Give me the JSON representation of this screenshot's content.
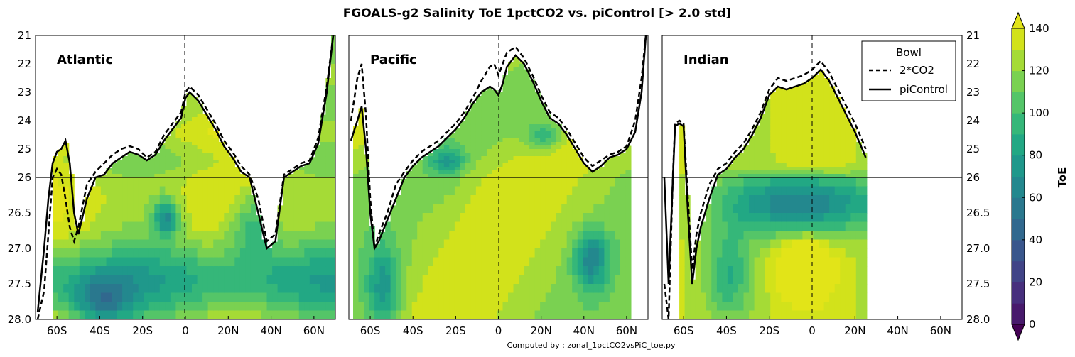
{
  "chart_data": {
    "type": "heatmap",
    "title": "FGOALS-g2 Salinity ToE 1pctCO2 vs. piControl [> 2.0 std]",
    "footer": "Computed by : zonal_1pctCO2vsPiC_toe.py",
    "x_ticks": [
      {
        "value": -60,
        "label": "60S"
      },
      {
        "value": -40,
        "label": "40S"
      },
      {
        "value": -20,
        "label": "20S"
      },
      {
        "value": 0,
        "label": "0"
      },
      {
        "value": 20,
        "label": "20N"
      },
      {
        "value": 40,
        "label": "40N"
      },
      {
        "value": 60,
        "label": "60N"
      }
    ],
    "xlim": [
      -70,
      70
    ],
    "y_ticks_upper": [
      "21",
      "22",
      "23",
      "24",
      "25",
      "26"
    ],
    "y_ticks_lower": [
      "26",
      "26.5",
      "27.0",
      "27.5",
      "28.0"
    ],
    "y_ticks_right_upper": [
      "21",
      "22",
      "23",
      "24",
      "25",
      "26"
    ],
    "y_ticks_right_lower": [
      "26",
      "26.5",
      "27.0",
      "27.5",
      "28.0"
    ],
    "ylim_upper": [
      21,
      26
    ],
    "ylim_lower": [
      26,
      28
    ],
    "y_axis_note": "density axis (inverted), two stacked domains split at 26",
    "colorbar": {
      "label": "ToE",
      "ticks": [
        "0",
        "20",
        "40",
        "60",
        "80",
        "100",
        "120",
        "140"
      ],
      "levels": [
        0,
        10,
        20,
        30,
        40,
        50,
        60,
        70,
        80,
        90,
        100,
        110,
        120,
        130,
        140
      ],
      "colors": [
        "#440154",
        "#481a6c",
        "#472f7d",
        "#414487",
        "#39568c",
        "#31688e",
        "#2a788e",
        "#23888e",
        "#1f988b",
        "#22a884",
        "#35b779",
        "#54c568",
        "#7ad151",
        "#a5db36",
        "#d2e21b",
        "#e2e418"
      ],
      "extend": "both"
    },
    "legend": {
      "title": "Bowl",
      "entries": [
        {
          "label": "2*CO2",
          "style": "dashed"
        },
        {
          "label": "piControl",
          "style": "solid"
        }
      ],
      "placement": "top-right"
    },
    "panels": [
      {
        "name": "Atlantic",
        "lat_range": [
          -70,
          70
        ],
        "bowl_piControl": {
          "x": [
            -69,
            -66,
            -64,
            -62,
            -60,
            -58,
            -56,
            -54,
            -52,
            -50,
            -46,
            -42,
            -38,
            -34,
            -30,
            -26,
            -22,
            -18,
            -14,
            -10,
            -6,
            -2,
            0,
            2,
            6,
            10,
            14,
            18,
            22,
            26,
            30,
            34,
            38,
            42,
            46,
            50,
            54,
            58,
            62,
            66,
            69
          ],
          "y": [
            27.9,
            27.0,
            26.3,
            25.5,
            25.1,
            25.0,
            24.7,
            25.5,
            26.5,
            26.8,
            26.3,
            26.0,
            25.9,
            25.5,
            25.3,
            25.1,
            25.2,
            25.4,
            25.2,
            24.7,
            24.3,
            23.9,
            23.2,
            23.0,
            23.3,
            23.8,
            24.3,
            24.9,
            25.3,
            25.8,
            26.0,
            26.5,
            27.0,
            26.9,
            26.0,
            25.8,
            25.6,
            25.5,
            24.8,
            23.0,
            21.0
          ]
        },
        "bowl_2CO2": {
          "x": [
            -69,
            -66,
            -64,
            -62,
            -60,
            -58,
            -56,
            -54,
            -52,
            -50,
            -46,
            -42,
            -38,
            -34,
            -30,
            -26,
            -22,
            -18,
            -14,
            -10,
            -6,
            -2,
            0,
            2,
            6,
            10,
            14,
            18,
            22,
            26,
            30,
            34,
            38,
            42,
            46,
            50,
            54,
            58,
            62,
            66,
            69
          ],
          "y": [
            28.0,
            27.6,
            26.8,
            26.0,
            25.7,
            25.9,
            26.3,
            26.7,
            26.9,
            26.7,
            26.1,
            25.8,
            25.5,
            25.2,
            25.0,
            24.9,
            25.0,
            25.3,
            25.1,
            24.5,
            24.1,
            23.7,
            23.0,
            22.8,
            23.1,
            23.6,
            24.1,
            24.7,
            25.1,
            25.6,
            25.9,
            26.3,
            26.9,
            26.8,
            25.9,
            25.7,
            25.5,
            25.4,
            24.6,
            22.8,
            21.0
          ]
        },
        "toe_field_note": "filled ToE values mostly 110-140 (yellow) with mid-values 50-100 in deep layers and a minimum near 40 around 10S, 26.5"
      },
      {
        "name": "Pacific",
        "lat_range": [
          -70,
          70
        ],
        "bowl_piControl": {
          "x": [
            -69,
            -66,
            -64,
            -62,
            -60,
            -58,
            -56,
            -52,
            -48,
            -44,
            -40,
            -36,
            -32,
            -28,
            -24,
            -20,
            -16,
            -12,
            -8,
            -4,
            -2,
            0,
            2,
            4,
            8,
            12,
            16,
            20,
            24,
            28,
            32,
            36,
            40,
            44,
            48,
            52,
            56,
            60,
            64,
            67,
            69
          ],
          "y": [
            24.7,
            24.0,
            23.5,
            25.0,
            26.5,
            27.0,
            26.9,
            26.6,
            26.3,
            26.0,
            25.6,
            25.3,
            25.1,
            24.9,
            24.6,
            24.3,
            23.9,
            23.4,
            23.0,
            22.8,
            22.9,
            23.1,
            22.7,
            22.1,
            21.7,
            22.0,
            22.6,
            23.3,
            23.9,
            24.1,
            24.5,
            25.0,
            25.5,
            25.8,
            25.6,
            25.3,
            25.2,
            25.0,
            24.4,
            23.0,
            21.0
          ]
        },
        "bowl_2CO2": {
          "x": [
            -69,
            -66,
            -64,
            -62,
            -60,
            -58,
            -56,
            -52,
            -48,
            -44,
            -40,
            -36,
            -32,
            -28,
            -24,
            -20,
            -16,
            -12,
            -8,
            -4,
            -2,
            0,
            2,
            4,
            8,
            12,
            16,
            20,
            24,
            28,
            32,
            36,
            40,
            44,
            48,
            52,
            56,
            60,
            64,
            67,
            69
          ],
          "y": [
            24.0,
            22.5,
            22.0,
            23.8,
            26.3,
            27.0,
            26.8,
            26.5,
            26.1,
            25.8,
            25.4,
            25.1,
            24.9,
            24.7,
            24.4,
            24.1,
            23.7,
            23.2,
            22.6,
            22.1,
            22.0,
            22.4,
            22.0,
            21.6,
            21.4,
            21.8,
            22.4,
            23.1,
            23.7,
            23.9,
            24.3,
            24.8,
            25.3,
            25.6,
            25.4,
            25.2,
            25.1,
            24.9,
            24.0,
            22.5,
            21.0
          ]
        },
        "toe_field_note": "filled ToE values mostly 110-140 with 40-90 minima near 40N-50N below 27.0 and along 60S"
      },
      {
        "name": "Indian",
        "lat_range": [
          -70,
          70
        ],
        "bowl_piControl": {
          "x": [
            -69,
            -67,
            -65,
            -64,
            -62,
            -60,
            -58,
            -56,
            -54,
            -52,
            -48,
            -44,
            -40,
            -36,
            -32,
            -28,
            -24,
            -20,
            -16,
            -12,
            -8,
            -4,
            0,
            4,
            8,
            12,
            16,
            20,
            24,
            25
          ],
          "y": [
            26.0,
            27.5,
            26.0,
            24.2,
            24.1,
            24.2,
            26.5,
            27.5,
            27.0,
            26.7,
            26.3,
            25.9,
            25.7,
            25.3,
            25.0,
            24.5,
            23.9,
            23.1,
            22.8,
            22.9,
            22.8,
            22.7,
            22.5,
            22.2,
            22.6,
            23.2,
            23.8,
            24.4,
            25.1,
            25.3
          ]
        },
        "bowl_2CO2": {
          "x": [
            -69,
            -67,
            -65,
            -64,
            -62,
            -60,
            -58,
            -56,
            -54,
            -52,
            -48,
            -44,
            -40,
            -36,
            -32,
            -28,
            -24,
            -20,
            -16,
            -12,
            -8,
            -4,
            0,
            4,
            8,
            12,
            16,
            20,
            24,
            25
          ],
          "y": [
            27.5,
            28.0,
            25.9,
            24.1,
            24.0,
            24.1,
            26.3,
            27.3,
            26.8,
            26.5,
            26.1,
            25.7,
            25.5,
            25.1,
            24.8,
            24.3,
            23.7,
            22.9,
            22.5,
            22.6,
            22.5,
            22.4,
            22.2,
            21.9,
            22.3,
            22.9,
            23.5,
            24.1,
            24.8,
            25.0
          ]
        },
        "toe_field_note": "filled ToE values 40-70 in a band below 26 between 45S and 25N, with 120-140 above and a tongue of high values near 10S-20N below 26.5"
      }
    ]
  }
}
